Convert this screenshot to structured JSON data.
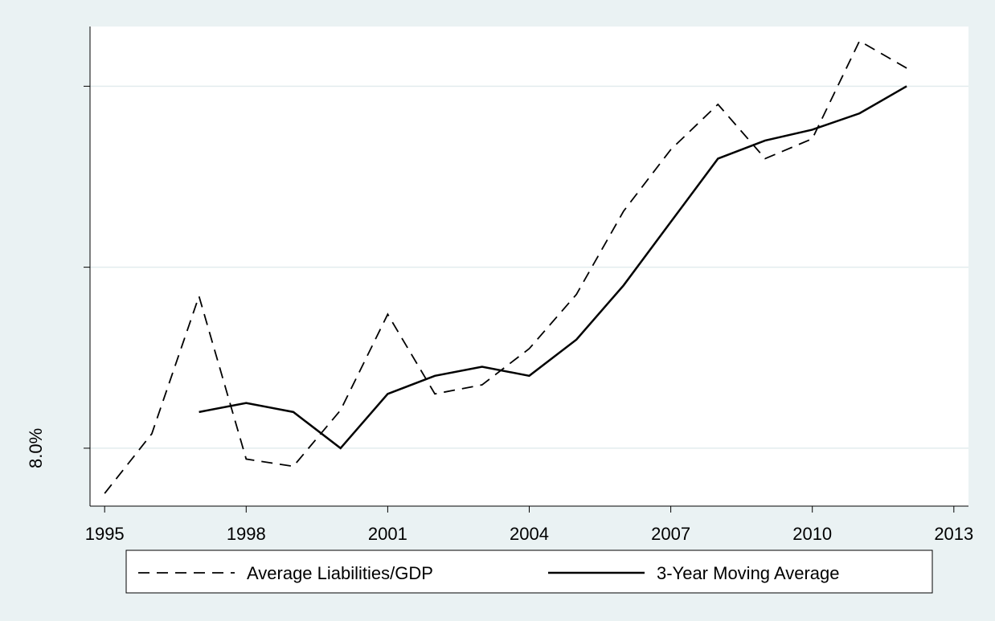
{
  "chart_data": {
    "type": "line",
    "x": [
      1995,
      1996,
      1997,
      1998,
      1999,
      2000,
      2001,
      2002,
      2003,
      2004,
      2005,
      2006,
      2007,
      2008,
      2009,
      2010,
      2011,
      2012
    ],
    "series": [
      {
        "name": "Average Liabilities/GDP",
        "color": "#000000",
        "dash": "dashed",
        "values": [
          7.75,
          8.08,
          8.84,
          7.94,
          7.9,
          8.21,
          8.74,
          8.3,
          8.35,
          8.55,
          8.85,
          9.31,
          9.65,
          9.9,
          9.6,
          9.71,
          10.25,
          10.1
        ]
      },
      {
        "name": "3-Year Moving Average",
        "color": "#000000",
        "dash": "solid",
        "values": [
          null,
          null,
          8.2,
          8.25,
          8.2,
          8.0,
          8.3,
          8.4,
          8.45,
          8.4,
          8.6,
          8.9,
          9.25,
          9.6,
          9.7,
          9.76,
          9.85,
          10.0
        ]
      }
    ],
    "xlim": [
      1994.69,
      2013.31
    ],
    "xticks": [
      1995,
      1998,
      2001,
      2004,
      2007,
      2010,
      2013
    ],
    "ylim": [
      7.68,
      10.33
    ],
    "yticks": [
      {
        "value": 8,
        "label": "8.0%"
      },
      {
        "value": 9,
        "label": null
      },
      {
        "value": 10,
        "label": null
      }
    ],
    "grid": true
  }
}
